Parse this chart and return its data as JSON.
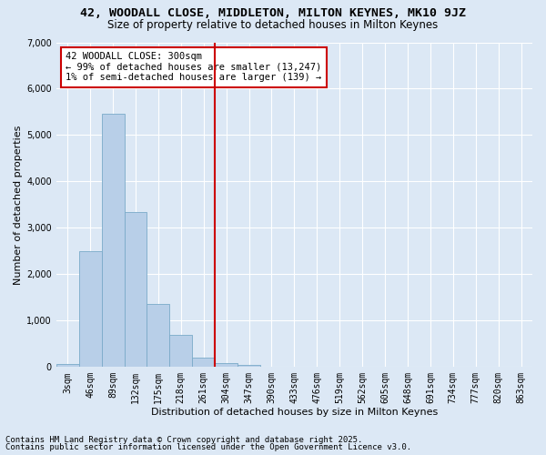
{
  "title_line1": "42, WOODALL CLOSE, MIDDLETON, MILTON KEYNES, MK10 9JZ",
  "title_line2": "Size of property relative to detached houses in Milton Keynes",
  "xlabel": "Distribution of detached houses by size in Milton Keynes",
  "ylabel": "Number of detached properties",
  "footnote1": "Contains HM Land Registry data © Crown copyright and database right 2025.",
  "footnote2": "Contains public sector information licensed under the Open Government Licence v3.0.",
  "annotation_title": "42 WOODALL CLOSE: 300sqm",
  "annotation_line2": "← 99% of detached houses are smaller (13,247)",
  "annotation_line3": "1% of semi-detached houses are larger (139) →",
  "categories": [
    "3sqm",
    "46sqm",
    "89sqm",
    "132sqm",
    "175sqm",
    "218sqm",
    "261sqm",
    "304sqm",
    "347sqm",
    "390sqm",
    "433sqm",
    "476sqm",
    "519sqm",
    "562sqm",
    "605sqm",
    "648sqm",
    "691sqm",
    "734sqm",
    "777sqm",
    "820sqm",
    "863sqm"
  ],
  "values": [
    60,
    2500,
    5450,
    3350,
    1350,
    700,
    200,
    90,
    50,
    0,
    0,
    0,
    0,
    0,
    0,
    0,
    0,
    0,
    0,
    0,
    0
  ],
  "bar_color": "#b8cfe8",
  "bar_edge_color": "#7aaac8",
  "vline_color": "#cc0000",
  "vline_x_idx": 7,
  "ylim": [
    0,
    7000
  ],
  "yticks": [
    0,
    1000,
    2000,
    3000,
    4000,
    5000,
    6000,
    7000
  ],
  "bg_color": "#dce8f5",
  "plot_bg_color": "#dce8f5",
  "grid_color": "#ffffff",
  "title_fontsize": 9.5,
  "subtitle_fontsize": 8.5,
  "axis_label_fontsize": 8,
  "tick_fontsize": 7,
  "annotation_fontsize": 7.5,
  "footnote_fontsize": 6.5
}
